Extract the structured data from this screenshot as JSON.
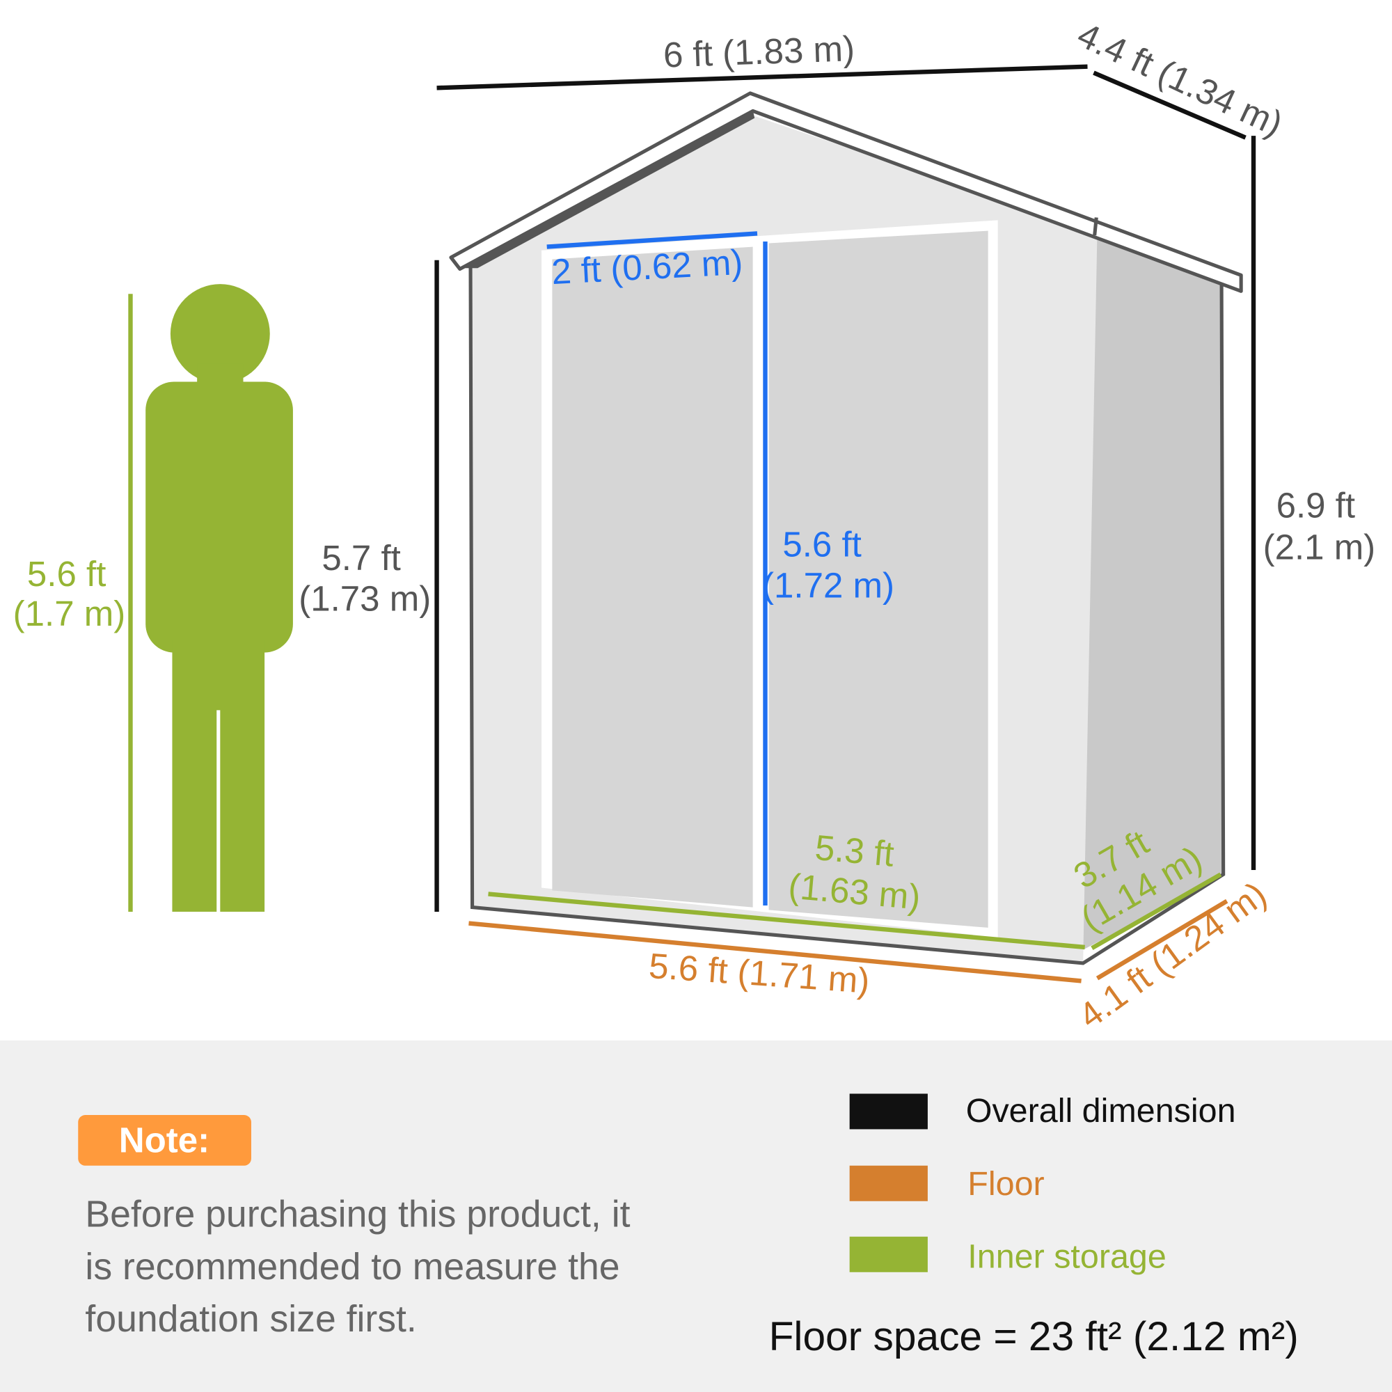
{
  "colors": {
    "overall": "#111111",
    "floor": "#d57f2e",
    "inner": "#95b434",
    "door": "#1f6ff0",
    "text_gray": "#555555",
    "note_badge": "#ff9a3c",
    "panel_bg": "#f0f0f0"
  },
  "dimensions": {
    "overall_width": "6 ft (1.83 m)",
    "overall_depth": "4.4 ft (1.34 m)",
    "overall_height_ft": "6.9 ft",
    "overall_height_m": "(2.1 m)",
    "eave_height_ft": "5.7 ft",
    "eave_height_m": "(1.73 m)",
    "door_width": "2 ft (0.62 m)",
    "door_height_ft": "5.6 ft",
    "door_height_m": "(1.72 m)",
    "inner_width_ft": "5.3 ft",
    "inner_width_m": "(1.63 m)",
    "inner_depth_ft": "3.7 ft",
    "inner_depth_m": "(1.14 m)",
    "floor_width": "5.6 ft (1.71 m)",
    "floor_depth": "4.1 ft (1.24 m)",
    "person_height_ft": "5.6 ft",
    "person_height_m": "(1.7 m)"
  },
  "note": {
    "badge": "Note:",
    "lines": [
      "Before purchasing this product, it",
      "is recommended to measure the",
      "foundation size first."
    ]
  },
  "legend": [
    {
      "label": "Overall dimension",
      "color": "#111111"
    },
    {
      "label": "Floor",
      "color": "#d57f2e"
    },
    {
      "label": "Inner storage",
      "color": "#95b434"
    }
  ],
  "floor_space": "Floor space = 23 ft² (2.12 m²)"
}
